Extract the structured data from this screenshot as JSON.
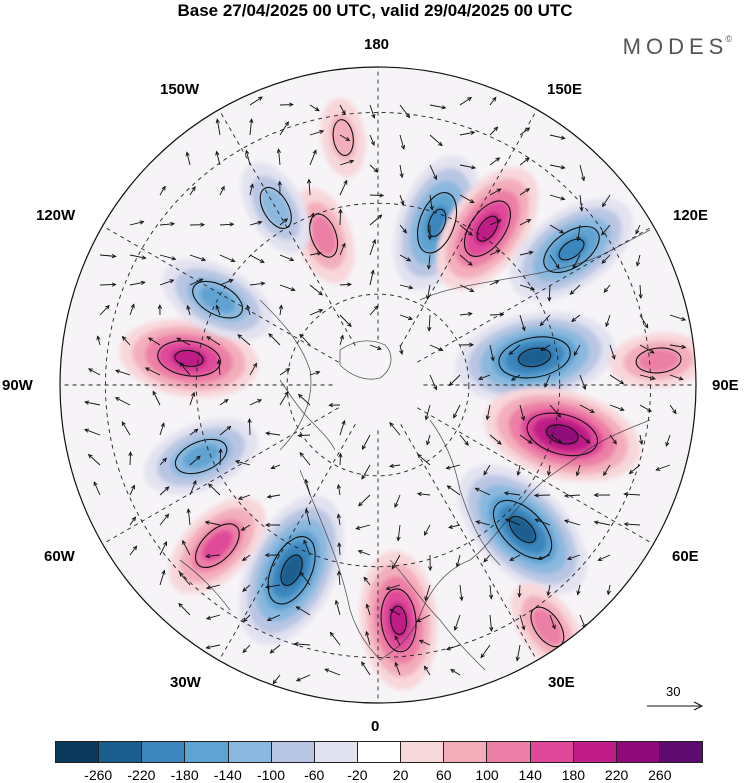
{
  "title": "Base 27/04/2025 00 UTC, valid 29/04/2025 00 UTC",
  "brand": "MODES",
  "brand_mark": "©",
  "longitude_labels": {
    "top": "180",
    "bottom": "0",
    "left": "90W",
    "right": "90E",
    "nw_upper": "150W",
    "nw_lower": "120W",
    "ne_upper": "150E",
    "ne_lower": "120E",
    "sw_upper": "60W",
    "sw_lower": "30W",
    "se_upper": "60E",
    "se_lower": "30E"
  },
  "vector_scale_label": "30",
  "colorbar": {
    "colors": [
      "#0b3a5c",
      "#1c5f8f",
      "#3a86bd",
      "#5ea3d2",
      "#8bb8de",
      "#b9c6e3",
      "#e2e2f0",
      "#ffffff",
      "#f8d7db",
      "#f3aebb",
      "#ec7fa6",
      "#e0489a",
      "#c01c86",
      "#8f0a7a",
      "#5d0b6e"
    ],
    "ticks": [
      "-260",
      "-220",
      "-180",
      "-140",
      "-100",
      "-60",
      "-20",
      "20",
      "60",
      "100",
      "140",
      "180",
      "220",
      "260"
    ]
  },
  "anomaly_centers": [
    {
      "sign": "negative",
      "level": 4,
      "lon_deg": 160,
      "lat_deg": 52
    },
    {
      "sign": "positive",
      "level": 4,
      "lon_deg": 145,
      "lat_deg": 48
    },
    {
      "sign": "negative",
      "level": 4,
      "lon_deg": 125,
      "lat_deg": 38
    },
    {
      "sign": "negative",
      "level": 5,
      "lon_deg": 100,
      "lat_deg": 55
    },
    {
      "sign": "positive",
      "level": 5,
      "lon_deg": 75,
      "lat_deg": 48
    },
    {
      "sign": "negative",
      "level": 5,
      "lon_deg": 45,
      "lat_deg": 45
    },
    {
      "sign": "positive",
      "level": 4,
      "lon_deg": 5,
      "lat_deg": 38
    },
    {
      "sign": "negative",
      "level": 5,
      "lon_deg": -25,
      "lat_deg": 45
    },
    {
      "sign": "positive",
      "level": 3,
      "lon_deg": -45,
      "lat_deg": 40
    },
    {
      "sign": "negative",
      "level": 3,
      "lon_deg": -68,
      "lat_deg": 48
    },
    {
      "sign": "positive",
      "level": 4,
      "lon_deg": -98,
      "lat_deg": 48
    },
    {
      "sign": "negative",
      "level": 3,
      "lon_deg": -118,
      "lat_deg": 50
    },
    {
      "sign": "positive",
      "level": 2,
      "lon_deg": -160,
      "lat_deg": 55
    },
    {
      "sign": "negative",
      "level": 2,
      "lon_deg": -150,
      "lat_deg": 45
    },
    {
      "sign": "positive",
      "level": 1,
      "lon_deg": -172,
      "lat_deg": 35
    },
    {
      "sign": "positive",
      "level": 2,
      "lon_deg": 95,
      "lat_deg": 28
    },
    {
      "sign": "positive",
      "level": 2,
      "lon_deg": 35,
      "lat_deg": 25
    }
  ]
}
